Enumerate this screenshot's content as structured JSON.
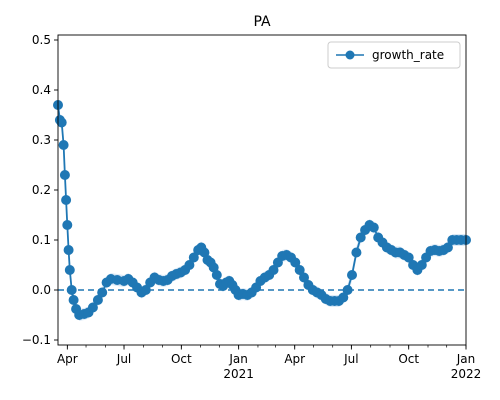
{
  "chart_data": {
    "type": "line",
    "title": "PA",
    "xlabel": "",
    "ylabel": "",
    "legend": {
      "position": "top-right",
      "entries": [
        "growth_rate"
      ]
    },
    "grid": false,
    "xlim": [
      "2020-03-17",
      "2022-01-01"
    ],
    "ylim": [
      -0.11,
      0.51
    ],
    "x_major_ticks": [
      {
        "date": "2020-04-01",
        "label": "Apr",
        "sublabel": ""
      },
      {
        "date": "2020-07-01",
        "label": "Jul",
        "sublabel": ""
      },
      {
        "date": "2020-10-01",
        "label": "Oct",
        "sublabel": ""
      },
      {
        "date": "2021-01-01",
        "label": "Jan",
        "sublabel": "2021"
      },
      {
        "date": "2021-04-01",
        "label": "Apr",
        "sublabel": ""
      },
      {
        "date": "2021-07-01",
        "label": "Jul",
        "sublabel": ""
      },
      {
        "date": "2021-10-01",
        "label": "Oct",
        "sublabel": ""
      },
      {
        "date": "2022-01-01",
        "label": "Jan",
        "sublabel": "2022"
      }
    ],
    "y_ticks": [
      -0.1,
      0.0,
      0.1,
      0.2,
      0.3,
      0.4,
      0.5
    ],
    "y_tick_labels": [
      "−0.1",
      "0.0",
      "0.1",
      "0.2",
      "0.3",
      "0.4",
      "0.5"
    ],
    "reference_line": {
      "y": 0.0,
      "style": "dashed"
    },
    "series": [
      {
        "name": "growth_rate",
        "color": "#1f77b4",
        "band_color": "#cfe2f3",
        "band_halfwidth": 0.012,
        "points": [
          [
            "2020-03-17",
            0.37
          ],
          [
            "2020-03-20",
            0.34
          ],
          [
            "2020-03-23",
            0.335
          ],
          [
            "2020-03-26",
            0.29
          ],
          [
            "2020-03-28",
            0.23
          ],
          [
            "2020-03-30",
            0.18
          ],
          [
            "2020-04-01",
            0.13
          ],
          [
            "2020-04-03",
            0.08
          ],
          [
            "2020-04-05",
            0.04
          ],
          [
            "2020-04-08",
            0.0
          ],
          [
            "2020-04-11",
            -0.02
          ],
          [
            "2020-04-15",
            -0.038
          ],
          [
            "2020-04-20",
            -0.05
          ],
          [
            "2020-04-28",
            -0.048
          ],
          [
            "2020-05-05",
            -0.045
          ],
          [
            "2020-05-12",
            -0.035
          ],
          [
            "2020-05-20",
            -0.02
          ],
          [
            "2020-05-27",
            -0.005
          ],
          [
            "2020-06-03",
            0.015
          ],
          [
            "2020-06-10",
            0.022
          ],
          [
            "2020-06-20",
            0.02
          ],
          [
            "2020-07-01",
            0.018
          ],
          [
            "2020-07-08",
            0.022
          ],
          [
            "2020-07-15",
            0.015
          ],
          [
            "2020-07-22",
            0.005
          ],
          [
            "2020-07-29",
            -0.005
          ],
          [
            "2020-08-05",
            0.0
          ],
          [
            "2020-08-12",
            0.015
          ],
          [
            "2020-08-19",
            0.025
          ],
          [
            "2020-08-26",
            0.02
          ],
          [
            "2020-09-02",
            0.018
          ],
          [
            "2020-09-09",
            0.02
          ],
          [
            "2020-09-16",
            0.028
          ],
          [
            "2020-09-23",
            0.032
          ],
          [
            "2020-09-30",
            0.035
          ],
          [
            "2020-10-07",
            0.04
          ],
          [
            "2020-10-14",
            0.05
          ],
          [
            "2020-10-21",
            0.065
          ],
          [
            "2020-10-28",
            0.08
          ],
          [
            "2020-11-02",
            0.085
          ],
          [
            "2020-11-07",
            0.075
          ],
          [
            "2020-11-12",
            0.06
          ],
          [
            "2020-11-17",
            0.055
          ],
          [
            "2020-11-22",
            0.045
          ],
          [
            "2020-11-27",
            0.03
          ],
          [
            "2020-12-02",
            0.012
          ],
          [
            "2020-12-07",
            0.008
          ],
          [
            "2020-12-12",
            0.015
          ],
          [
            "2020-12-17",
            0.018
          ],
          [
            "2020-12-22",
            0.01
          ],
          [
            "2020-12-27",
            0.0
          ],
          [
            "2021-01-01",
            -0.01
          ],
          [
            "2021-01-08",
            -0.008
          ],
          [
            "2021-01-15",
            -0.01
          ],
          [
            "2021-01-22",
            -0.005
          ],
          [
            "2021-01-29",
            0.005
          ],
          [
            "2021-02-05",
            0.018
          ],
          [
            "2021-02-12",
            0.025
          ],
          [
            "2021-02-19",
            0.03
          ],
          [
            "2021-02-26",
            0.04
          ],
          [
            "2021-03-05",
            0.055
          ],
          [
            "2021-03-12",
            0.068
          ],
          [
            "2021-03-19",
            0.07
          ],
          [
            "2021-03-26",
            0.065
          ],
          [
            "2021-04-02",
            0.055
          ],
          [
            "2021-04-09",
            0.04
          ],
          [
            "2021-04-16",
            0.025
          ],
          [
            "2021-04-23",
            0.01
          ],
          [
            "2021-04-30",
            0.0
          ],
          [
            "2021-05-07",
            -0.005
          ],
          [
            "2021-05-14",
            -0.01
          ],
          [
            "2021-05-21",
            -0.018
          ],
          [
            "2021-05-28",
            -0.022
          ],
          [
            "2021-06-04",
            -0.022
          ],
          [
            "2021-06-11",
            -0.022
          ],
          [
            "2021-06-18",
            -0.015
          ],
          [
            "2021-06-25",
            0.0
          ],
          [
            "2021-07-02",
            0.03
          ],
          [
            "2021-07-09",
            0.075
          ],
          [
            "2021-07-16",
            0.105
          ],
          [
            "2021-07-23",
            0.12
          ],
          [
            "2021-07-30",
            0.13
          ],
          [
            "2021-08-06",
            0.125
          ],
          [
            "2021-08-13",
            0.105
          ],
          [
            "2021-08-20",
            0.095
          ],
          [
            "2021-08-27",
            0.085
          ],
          [
            "2021-09-03",
            0.08
          ],
          [
            "2021-09-10",
            0.075
          ],
          [
            "2021-09-17",
            0.075
          ],
          [
            "2021-09-24",
            0.07
          ],
          [
            "2021-10-01",
            0.065
          ],
          [
            "2021-10-08",
            0.05
          ],
          [
            "2021-10-15",
            0.04
          ],
          [
            "2021-10-22",
            0.05
          ],
          [
            "2021-10-29",
            0.065
          ],
          [
            "2021-11-05",
            0.078
          ],
          [
            "2021-11-12",
            0.08
          ],
          [
            "2021-11-19",
            0.078
          ],
          [
            "2021-11-26",
            0.08
          ],
          [
            "2021-12-03",
            0.085
          ],
          [
            "2021-12-10",
            0.1
          ],
          [
            "2021-12-17",
            0.1
          ],
          [
            "2021-12-24",
            0.1
          ],
          [
            "2022-01-01",
            0.1
          ]
        ]
      }
    ]
  }
}
